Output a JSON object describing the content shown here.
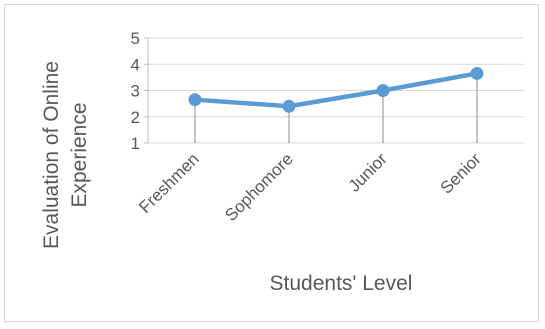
{
  "chart_data": {
    "type": "line",
    "title": "",
    "xlabel": "Students' Level",
    "ylabel_lines": [
      "Evaluation of Online",
      "Experience"
    ],
    "categories": [
      "Freshmen",
      "Sophomore",
      "Junior",
      "Senior"
    ],
    "series": [
      {
        "values": [
          2.65,
          2.4,
          3.0,
          3.65
        ],
        "color": "#5b9bd5"
      }
    ],
    "ylim": [
      1,
      5
    ],
    "yticks": [
      "1",
      "2",
      "3",
      "4",
      "5"
    ],
    "grid": true,
    "drop_lines": true,
    "legend": "none"
  }
}
